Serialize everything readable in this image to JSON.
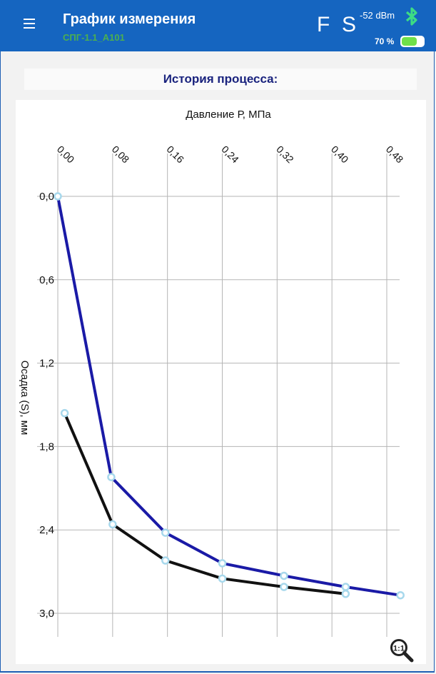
{
  "header": {
    "title": "График измерения",
    "subtitle": "СПГ-1.1_А101",
    "flag_f": "F",
    "flag_s": "S",
    "signal": "-52 dBm",
    "battery_label": "70 %",
    "battery_level": 0.7,
    "accent_color": "#1565c0",
    "subtitle_color": "#4caf50",
    "icons": [
      "menu-icon",
      "bluetooth-icon",
      "battery-icon",
      "zoom-reset-icon"
    ]
  },
  "section_title": "История процесса:",
  "chart_data": {
    "type": "line",
    "xlabel": "Давление Р, МПа",
    "ylabel": "Осадка (S), мм",
    "x_ticks": [
      "0,00",
      "0,08",
      "0,16",
      "0,24",
      "0,32",
      "0,40",
      "0,48"
    ],
    "y_ticks": [
      "0,0",
      "0,6",
      "1,2",
      "1,8",
      "2,4",
      "3,0"
    ],
    "xlim": [
      0,
      0.5
    ],
    "ylim": [
      0,
      3.0
    ],
    "y_inverted": true,
    "x_axis_position": "top",
    "grid": true,
    "series": [
      {
        "color": "#1a1aa6",
        "points": [
          [
            0.0,
            0.0
          ],
          [
            0.078,
            2.02
          ],
          [
            0.157,
            2.42
          ],
          [
            0.24,
            2.64
          ],
          [
            0.33,
            2.73
          ],
          [
            0.42,
            2.81
          ],
          [
            0.5,
            2.87
          ]
        ]
      },
      {
        "color": "#111111",
        "points": [
          [
            0.01,
            1.56
          ],
          [
            0.08,
            2.36
          ],
          [
            0.157,
            2.62
          ],
          [
            0.24,
            2.75
          ],
          [
            0.33,
            2.81
          ],
          [
            0.42,
            2.86
          ]
        ]
      }
    ]
  }
}
